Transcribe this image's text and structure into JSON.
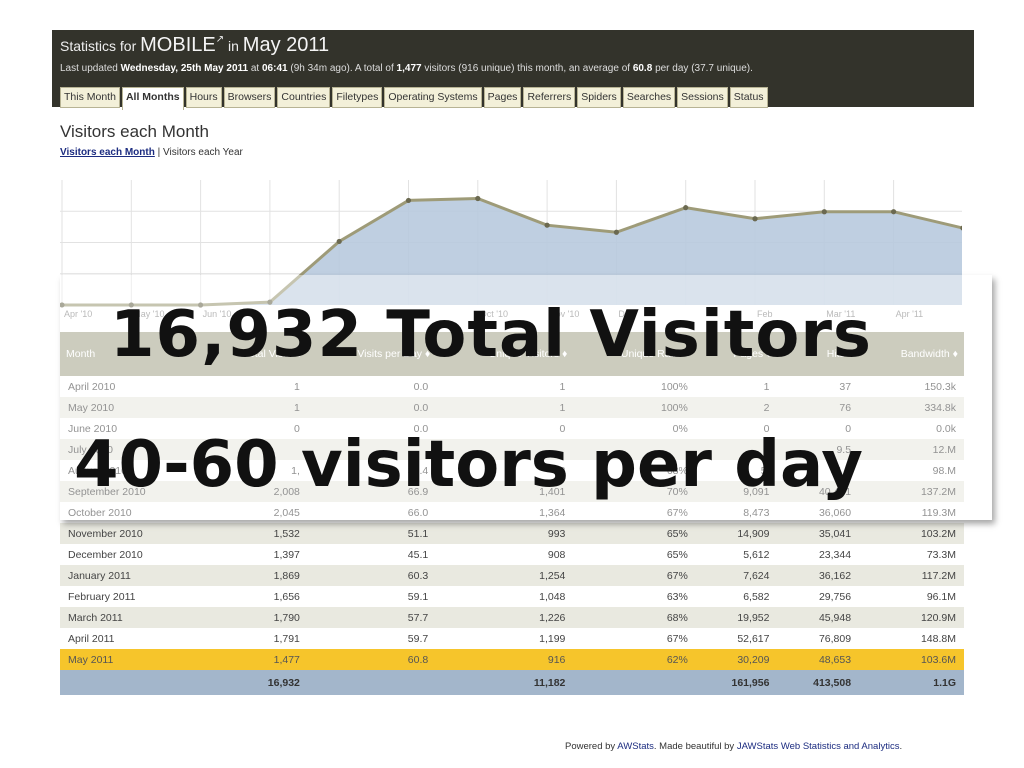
{
  "header": {
    "title_prefix": "Statistics for",
    "site": "MOBILE",
    "title_in": "in",
    "period": "May 2011",
    "updated": {
      "p1": "Last updated",
      "date": "Wednesday, 25th May 2011",
      "p2": "at",
      "time": "06:41",
      "p3": "(9h 34m ago). A total of",
      "total": "1,477",
      "p4": "visitors (916 unique) this month, an average of",
      "avg": "60.8",
      "p5": "per day (37.7 unique)."
    }
  },
  "tabs": [
    "This Month",
    "All Months",
    "Hours",
    "Browsers",
    "Countries",
    "Filetypes",
    "Operating Systems",
    "Pages",
    "Referrers",
    "Spiders",
    "Searches",
    "Sessions",
    "Status"
  ],
  "active_tab": "All Months",
  "section": {
    "title": "Visitors each Month",
    "link_active": "Visitors each Month",
    "separator": "|",
    "link_other": "Visitors each Year"
  },
  "chart_data": {
    "type": "area",
    "x": [
      "Apr '10",
      "May '10",
      "Jun '10",
      "Jul '10",
      "Aug '10",
      "Sep '10",
      "Oct '10",
      "Nov '10",
      "Dec '10",
      "Jan '11",
      "Feb '11",
      "Mar '11",
      "Apr '11",
      "May '11"
    ],
    "x_tick_labels": [
      "Apr '10",
      "May '10",
      "Jun '10",
      "",
      "",
      "",
      "Oct '10",
      "Nov '10",
      "Dec",
      "",
      "Feb",
      "Mar '11",
      "Apr '11",
      ""
    ],
    "values": [
      1,
      1,
      0,
      55,
      1220,
      2008,
      2045,
      1532,
      1397,
      1869,
      1656,
      1790,
      1791,
      1477
    ],
    "ylim": [
      0,
      2400
    ],
    "grid": true,
    "colors": {
      "fill": "#b8cade",
      "line": "#9e9b78",
      "marker": "#6b6950"
    }
  },
  "table": {
    "columns": [
      "Month",
      "Total Visits",
      "Visits per Day",
      "Unique Visitors",
      "Unique Ratio",
      "Pages",
      "Hits",
      "Bandwidth"
    ],
    "rows": [
      [
        "April 2010",
        "1",
        "0.0",
        "1",
        "100%",
        "1",
        "37",
        "150.3k"
      ],
      [
        "May 2010",
        "1",
        "0.0",
        "1",
        "100%",
        "2",
        "76",
        "334.8k"
      ],
      [
        "June 2010",
        "0",
        "0.0",
        "0",
        "0%",
        "0",
        "0",
        "0.0k"
      ],
      [
        "July 2010",
        "",
        "",
        "",
        "",
        "1",
        "9.5",
        "12.M"
      ],
      [
        "August 2010",
        "1,",
        "39.4",
        "8",
        "68%",
        "5,",
        "31.2",
        "98.M"
      ],
      [
        "September 2010",
        "2,008",
        "66.9",
        "1,401",
        "70%",
        "9,091",
        "40,401",
        "137.2M"
      ],
      [
        "October 2010",
        "2,045",
        "66.0",
        "1,364",
        "67%",
        "8,473",
        "36,060",
        "119.3M"
      ],
      [
        "November 2010",
        "1,532",
        "51.1",
        "993",
        "65%",
        "14,909",
        "35,041",
        "103.2M"
      ],
      [
        "December 2010",
        "1,397",
        "45.1",
        "908",
        "65%",
        "5,612",
        "23,344",
        "73.3M"
      ],
      [
        "January 2011",
        "1,869",
        "60.3",
        "1,254",
        "67%",
        "7,624",
        "36,162",
        "117.2M"
      ],
      [
        "February 2011",
        "1,656",
        "59.1",
        "1,048",
        "63%",
        "6,582",
        "29,756",
        "96.1M"
      ],
      [
        "March 2011",
        "1,790",
        "57.7",
        "1,226",
        "68%",
        "19,952",
        "45,948",
        "120.9M"
      ],
      [
        "April 2011",
        "1,791",
        "59.7",
        "1,199",
        "67%",
        "52,617",
        "76,809",
        "148.8M"
      ],
      [
        "May 2011",
        "1,477",
        "60.8",
        "916",
        "62%",
        "30,209",
        "48,653",
        "103.6M"
      ]
    ],
    "totals": [
      "",
      "16,932",
      "",
      "11,182",
      "",
      "161,956",
      "413,508",
      "1.1G"
    ]
  },
  "overlay": {
    "line1": "16,932 Total Visitors",
    "line2": "40-60 visitors per day"
  },
  "footer": {
    "p1": "Powered by",
    "link1": "AWStats",
    "p2": ". Made beautiful by",
    "link2": "JAWStats Web Statistics and Analytics",
    "p3": "."
  }
}
